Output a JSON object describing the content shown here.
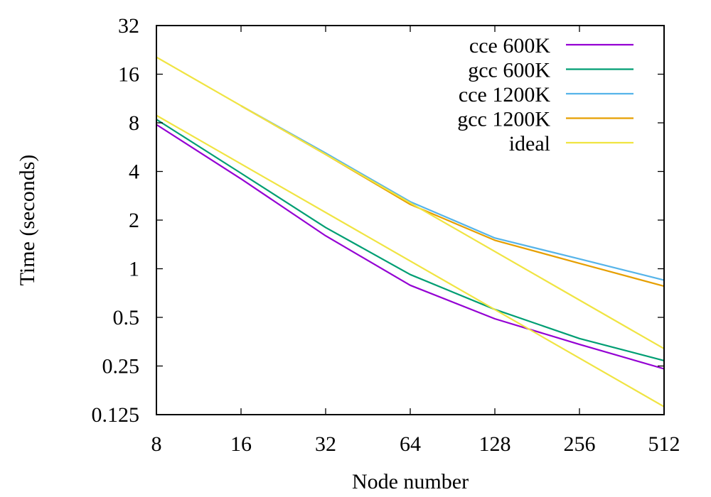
{
  "chart_data": {
    "type": "line",
    "title": "",
    "xlabel": "Node number",
    "ylabel": "Time (seconds)",
    "xscale": "log2",
    "yscale": "log2",
    "x": [
      8,
      16,
      32,
      64,
      128,
      256,
      512
    ],
    "xticks": [
      "8",
      "16",
      "32",
      "64",
      "128",
      "256",
      "512"
    ],
    "yticks": [
      "0.125",
      "0.25",
      "0.5",
      "1",
      "2",
      "4",
      "8",
      "16",
      "32"
    ],
    "ytick_values": [
      0.125,
      0.25,
      0.5,
      1,
      2,
      4,
      8,
      16,
      32
    ],
    "xlim": [
      8,
      512
    ],
    "ylim": [
      0.125,
      32
    ],
    "grid": false,
    "legend_position": "top-right",
    "series": [
      {
        "name": "cce 600K",
        "color": "#9400d3",
        "x": [
          8,
          16,
          32,
          64,
          128,
          256,
          512
        ],
        "values": [
          7.8,
          3.6,
          1.6,
          0.79,
          0.49,
          0.34,
          0.24
        ]
      },
      {
        "name": "gcc 600K",
        "color": "#009e73",
        "x": [
          8,
          16,
          32,
          64,
          128,
          256,
          512
        ],
        "values": [
          8.4,
          3.9,
          1.8,
          0.92,
          0.56,
          0.37,
          0.27
        ]
      },
      {
        "name": "cce 1200K",
        "color": "#56b4e9",
        "x": [
          16,
          32,
          64,
          128,
          256,
          512
        ],
        "values": [
          10.2,
          5.2,
          2.6,
          1.55,
          1.15,
          0.85
        ]
      },
      {
        "name": "gcc 1200K",
        "color": "#e69f00",
        "x": [
          16,
          32,
          64,
          128,
          256,
          512
        ],
        "values": [
          10.2,
          5.1,
          2.5,
          1.5,
          1.08,
          0.78
        ]
      },
      {
        "name": "ideal",
        "color": "#f0e442",
        "x": [
          8,
          512
        ],
        "values": [
          20.4,
          0.32
        ]
      },
      {
        "name": "ideal",
        "color": "#f0e442",
        "x": [
          8,
          512
        ],
        "values": [
          8.9,
          0.14
        ],
        "in_legend": false
      }
    ]
  }
}
